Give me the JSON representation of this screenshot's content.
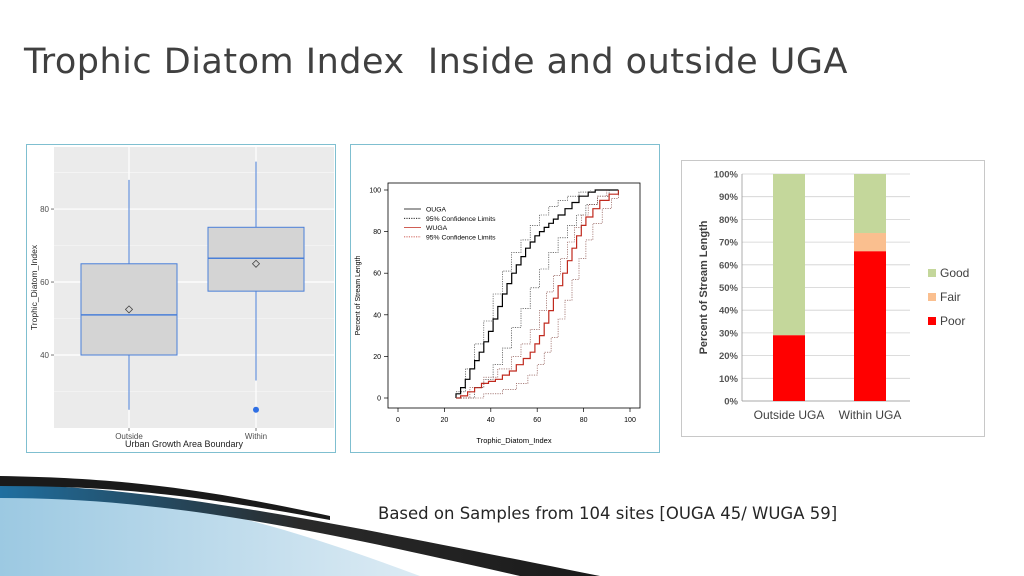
{
  "slide": {
    "title": "Trophic Diatom Index  Inside and outside UGA",
    "footnote": "Based on Samples from 104 sites [OUGA 45/ WUGA 59]"
  },
  "colors": {
    "title": "#404040",
    "box_fill": "#d4d4d4",
    "box_stroke": "#4a7fd8",
    "ouga_line": "#000000",
    "wuga_line": "#c0291d",
    "good": "#c4d79b",
    "fair": "#fabf8f",
    "poor": "#ff0000",
    "swoosh": "#1f4e79"
  },
  "chart_data": [
    {
      "type": "box",
      "xlabel": "Urban Growth Area Boundary",
      "ylabel": "Trophic_Diatom_Index",
      "yticks": [
        "40",
        "60",
        "80"
      ],
      "ylim": [
        20,
        97
      ],
      "grid": true,
      "groups": [
        {
          "name": "Outside",
          "min": 25,
          "q1": 40,
          "median": 51,
          "mean": 52.5,
          "q3": 65,
          "max": 88,
          "outliers": []
        },
        {
          "name": "Within",
          "min": 33,
          "q1": 57.5,
          "median": 66.5,
          "mean": 65,
          "q3": 75,
          "max": 93,
          "outliers": [
            25
          ]
        }
      ]
    },
    {
      "type": "line",
      "xlabel": "Trophic_Diatom_Index",
      "ylabel": "Percent of Stream Length",
      "xticks": [
        "0",
        "20",
        "40",
        "60",
        "80",
        "100"
      ],
      "yticks": [
        "0",
        "20",
        "40",
        "60",
        "80",
        "100"
      ],
      "xlim": [
        0,
        100
      ],
      "ylim": [
        0,
        100
      ],
      "legend": {
        "position": "top-left",
        "entries": [
          "OUGA",
          "95% Confidence Limits",
          "WUGA",
          "95% Confidence Limits"
        ]
      },
      "series": [
        {
          "name": "OUGA",
          "points": [
            [
              25,
              0
            ],
            [
              25,
              2
            ],
            [
              27,
              5
            ],
            [
              29,
              9
            ],
            [
              31,
              14
            ],
            [
              33,
              18
            ],
            [
              35,
              22
            ],
            [
              37,
              27
            ],
            [
              39,
              32
            ],
            [
              41,
              38
            ],
            [
              43,
              44
            ],
            [
              45,
              50
            ],
            [
              47,
              55
            ],
            [
              49,
              60
            ],
            [
              51,
              64
            ],
            [
              53,
              68
            ],
            [
              55,
              72
            ],
            [
              57,
              75
            ],
            [
              59,
              78
            ],
            [
              61,
              80
            ],
            [
              63,
              82
            ],
            [
              65,
              84
            ],
            [
              67,
              86
            ],
            [
              69,
              88
            ],
            [
              72,
              91
            ],
            [
              75,
              94
            ],
            [
              78,
              97
            ],
            [
              82,
              99
            ],
            [
              85,
              100
            ],
            [
              95,
              100
            ]
          ]
        },
        {
          "name": "95% Confidence Limits",
          "ci_of": "OUGA",
          "upper": [
            [
              25,
              3
            ],
            [
              29,
              14
            ],
            [
              33,
              26
            ],
            [
              37,
              37
            ],
            [
              41,
              50
            ],
            [
              45,
              61
            ],
            [
              49,
              70
            ],
            [
              53,
              76
            ],
            [
              57,
              83
            ],
            [
              61,
              88
            ],
            [
              65,
              92
            ],
            [
              69,
              95
            ],
            [
              73,
              97
            ],
            [
              78,
              99
            ],
            [
              83,
              100
            ]
          ],
          "lower": [
            [
              25,
              0
            ],
            [
              33,
              5
            ],
            [
              37,
              9
            ],
            [
              41,
              16
            ],
            [
              45,
              24
            ],
            [
              49,
              34
            ],
            [
              53,
              43
            ],
            [
              57,
              53
            ],
            [
              61,
              62
            ],
            [
              65,
              70
            ],
            [
              69,
              77
            ],
            [
              73,
              83
            ],
            [
              77,
              88
            ],
            [
              81,
              93
            ],
            [
              86,
              97
            ],
            [
              91,
              100
            ]
          ]
        },
        {
          "name": "WUGA",
          "points": [
            [
              25,
              0
            ],
            [
              27,
              1
            ],
            [
              30,
              3
            ],
            [
              33,
              5
            ],
            [
              36,
              7
            ],
            [
              39,
              8
            ],
            [
              42,
              9
            ],
            [
              45,
              11
            ],
            [
              48,
              13
            ],
            [
              51,
              16
            ],
            [
              54,
              19
            ],
            [
              57,
              22
            ],
            [
              59,
              26
            ],
            [
              61,
              30
            ],
            [
              63,
              36
            ],
            [
              65,
              42
            ],
            [
              67,
              48
            ],
            [
              69,
              54
            ],
            [
              71,
              60
            ],
            [
              73,
              66
            ],
            [
              75,
              72
            ],
            [
              77,
              78
            ],
            [
              79,
              83
            ],
            [
              81,
              87
            ],
            [
              84,
              91
            ],
            [
              87,
              95
            ],
            [
              91,
              98
            ],
            [
              95,
              100
            ]
          ]
        },
        {
          "name": "95% Confidence Limits",
          "ci_of": "WUGA",
          "upper": [
            [
              25,
              0
            ],
            [
              31,
              5
            ],
            [
              37,
              10
            ],
            [
              43,
              14
            ],
            [
              49,
              20
            ],
            [
              53,
              26
            ],
            [
              57,
              33
            ],
            [
              61,
              42
            ],
            [
              64,
              51
            ],
            [
              67,
              59
            ],
            [
              70,
              67
            ],
            [
              73,
              75
            ],
            [
              76,
              82
            ],
            [
              79,
              88
            ],
            [
              82,
              93
            ],
            [
              86,
              97
            ],
            [
              90,
              100
            ]
          ],
          "lower": [
            [
              25,
              0
            ],
            [
              37,
              2
            ],
            [
              45,
              4
            ],
            [
              51,
              7
            ],
            [
              56,
              11
            ],
            [
              60,
              16
            ],
            [
              63,
              22
            ],
            [
              66,
              29
            ],
            [
              69,
              38
            ],
            [
              72,
              47
            ],
            [
              75,
              57
            ],
            [
              78,
              67
            ],
            [
              81,
              76
            ],
            [
              84,
              84
            ],
            [
              88,
              91
            ],
            [
              92,
              96
            ],
            [
              95,
              100
            ]
          ]
        }
      ]
    },
    {
      "type": "bar",
      "stacked": true,
      "categories": [
        "Outside UGA",
        "Within UGA"
      ],
      "ylabel": "Percent of Stream Length",
      "yticks": [
        "0%",
        "10%",
        "20%",
        "30%",
        "40%",
        "50%",
        "60%",
        "70%",
        "80%",
        "90%",
        "100%"
      ],
      "ylim": [
        0,
        100
      ],
      "grid": true,
      "legend": {
        "position": "right",
        "entries": [
          "Good",
          "Fair",
          "Poor"
        ]
      },
      "series": [
        {
          "name": "Poor",
          "values": [
            29,
            66
          ]
        },
        {
          "name": "Fair",
          "values": [
            0,
            8
          ]
        },
        {
          "name": "Good",
          "values": [
            71,
            26
          ]
        }
      ]
    }
  ]
}
